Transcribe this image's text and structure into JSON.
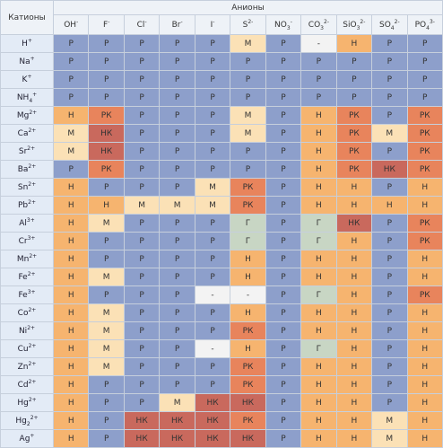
{
  "table": {
    "cations_header": "Катионы",
    "anions_header": "Анионы",
    "cell_colors": {
      "Р": "#8d9fcb",
      "Н": "#f6b46f",
      "М": "#fbe1b6",
      "РК": "#e8845c",
      "НК": "#c9695d",
      "Г": "#c8d6c4",
      "-": "#f3f3f3"
    },
    "anions": [
      {
        "symbol": "OH",
        "charge": "-"
      },
      {
        "symbol": "F",
        "charge": "-"
      },
      {
        "symbol": "Cl",
        "charge": "-"
      },
      {
        "symbol": "Br",
        "charge": "-"
      },
      {
        "symbol": "I",
        "charge": "-"
      },
      {
        "symbol": "S",
        "charge": "2-"
      },
      {
        "symbol": "NO",
        "sub": "3",
        "charge": "-"
      },
      {
        "symbol": "CO",
        "sub": "3",
        "charge": "2-"
      },
      {
        "symbol": "SiO",
        "sub": "3",
        "charge": "2-"
      },
      {
        "symbol": "SO",
        "sub": "4",
        "charge": "2-"
      },
      {
        "symbol": "PO",
        "sub": "4",
        "charge": "3-"
      }
    ],
    "rows": [
      {
        "cation": {
          "symbol": "H",
          "charge": "+"
        },
        "cells": [
          "Р",
          "Р",
          "Р",
          "Р",
          "Р",
          "М",
          "Р",
          "-",
          "Н",
          "Р",
          "Р"
        ]
      },
      {
        "cation": {
          "symbol": "Na",
          "charge": "+"
        },
        "cells": [
          "Р",
          "Р",
          "Р",
          "Р",
          "Р",
          "Р",
          "Р",
          "Р",
          "Р",
          "Р",
          "Р"
        ]
      },
      {
        "cation": {
          "symbol": "K",
          "charge": "+"
        },
        "cells": [
          "Р",
          "Р",
          "Р",
          "Р",
          "Р",
          "Р",
          "Р",
          "Р",
          "Р",
          "Р",
          "Р"
        ]
      },
      {
        "cation": {
          "symbol": "NH",
          "sub": "4",
          "charge": "+"
        },
        "cells": [
          "Р",
          "Р",
          "Р",
          "Р",
          "Р",
          "Р",
          "Р",
          "Р",
          "Р",
          "Р",
          "Р"
        ]
      },
      {
        "cation": {
          "symbol": "Mg",
          "charge": "2+"
        },
        "cells": [
          "Н",
          "РК",
          "Р",
          "Р",
          "Р",
          "М",
          "Р",
          "Н",
          "РК",
          "Р",
          "РК"
        ]
      },
      {
        "cation": {
          "symbol": "Ca",
          "charge": "2+"
        },
        "cells": [
          "М",
          "НК",
          "Р",
          "Р",
          "Р",
          "М",
          "Р",
          "Н",
          "РК",
          "М",
          "РК"
        ]
      },
      {
        "cation": {
          "symbol": "Sr",
          "charge": "2+"
        },
        "cells": [
          "М",
          "НК",
          "Р",
          "Р",
          "Р",
          "Р",
          "Р",
          "Н",
          "РК",
          "Р",
          "РК"
        ]
      },
      {
        "cation": {
          "symbol": "Ba",
          "charge": "2+"
        },
        "cells": [
          "Р",
          "РК",
          "Р",
          "Р",
          "Р",
          "Р",
          "Р",
          "Н",
          "РК",
          "НК",
          "РК"
        ]
      },
      {
        "cation": {
          "symbol": "Sn",
          "charge": "2+"
        },
        "cells": [
          "Н",
          "Р",
          "Р",
          "Р",
          "М",
          "РК",
          "Р",
          "Н",
          "Н",
          "Р",
          "Н"
        ]
      },
      {
        "cation": {
          "symbol": "Pb",
          "charge": "2+"
        },
        "cells": [
          "Н",
          "Н",
          "М",
          "М",
          "М",
          "РК",
          "Р",
          "Н",
          "Н",
          "Н",
          "Н"
        ]
      },
      {
        "cation": {
          "symbol": "Al",
          "charge": "3+"
        },
        "cells": [
          "Н",
          "М",
          "Р",
          "Р",
          "Р",
          "Г",
          "Р",
          "Г",
          "НК",
          "Р",
          "РК"
        ]
      },
      {
        "cation": {
          "symbol": "Cr",
          "charge": "3+"
        },
        "cells": [
          "Н",
          "Р",
          "Р",
          "Р",
          "Р",
          "Г",
          "Р",
          "Г",
          "Н",
          "Р",
          "РК"
        ]
      },
      {
        "cation": {
          "symbol": "Mn",
          "charge": "2+"
        },
        "cells": [
          "Н",
          "Р",
          "Р",
          "Р",
          "Р",
          "Н",
          "Р",
          "Н",
          "Н",
          "Р",
          "Н"
        ]
      },
      {
        "cation": {
          "symbol": "Fe",
          "charge": "2+"
        },
        "cells": [
          "Н",
          "М",
          "Р",
          "Р",
          "Р",
          "Н",
          "Р",
          "Н",
          "Н",
          "Р",
          "Н"
        ]
      },
      {
        "cation": {
          "symbol": "Fe",
          "charge": "3+"
        },
        "cells": [
          "Н",
          "Р",
          "Р",
          "Р",
          "-",
          "-",
          "Р",
          "Г",
          "Н",
          "Р",
          "РК"
        ]
      },
      {
        "cation": {
          "symbol": "Co",
          "charge": "2+"
        },
        "cells": [
          "Н",
          "М",
          "Р",
          "Р",
          "Р",
          "Н",
          "Р",
          "Н",
          "Н",
          "Р",
          "Н"
        ]
      },
      {
        "cation": {
          "symbol": "Ni",
          "charge": "2+"
        },
        "cells": [
          "Н",
          "М",
          "Р",
          "Р",
          "Р",
          "РК",
          "Р",
          "Н",
          "Н",
          "Р",
          "Н"
        ]
      },
      {
        "cation": {
          "symbol": "Cu",
          "charge": "2+"
        },
        "cells": [
          "Н",
          "М",
          "Р",
          "Р",
          "-",
          "Н",
          "Р",
          "Г",
          "Н",
          "Р",
          "Н"
        ]
      },
      {
        "cation": {
          "symbol": "Zn",
          "charge": "2+"
        },
        "cells": [
          "Н",
          "М",
          "Р",
          "Р",
          "Р",
          "РК",
          "Р",
          "Н",
          "Н",
          "Р",
          "Н"
        ]
      },
      {
        "cation": {
          "symbol": "Cd",
          "charge": "2+"
        },
        "cells": [
          "Н",
          "Р",
          "Р",
          "Р",
          "Р",
          "РК",
          "Р",
          "Н",
          "Н",
          "Р",
          "Н"
        ]
      },
      {
        "cation": {
          "symbol": "Hg",
          "charge": "2+"
        },
        "cells": [
          "Н",
          "Р",
          "Р",
          "М",
          "НК",
          "НК",
          "Р",
          "Н",
          "Н",
          "Р",
          "Н"
        ]
      },
      {
        "cation": {
          "symbol": "Hg",
          "sub": "2",
          "charge": "2+"
        },
        "cells": [
          "Н",
          "Р",
          "НК",
          "НК",
          "НК",
          "РК",
          "Р",
          "Н",
          "Н",
          "М",
          "Н"
        ]
      },
      {
        "cation": {
          "symbol": "Ag",
          "charge": "+"
        },
        "cells": [
          "Н",
          "Р",
          "НК",
          "НК",
          "НК",
          "НК",
          "Р",
          "Н",
          "Н",
          "М",
          "Н"
        ]
      }
    ]
  }
}
